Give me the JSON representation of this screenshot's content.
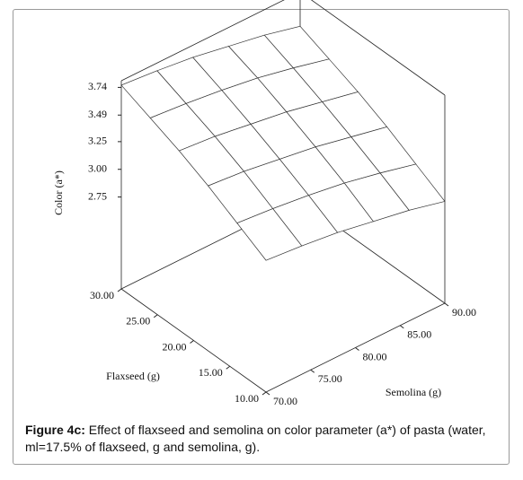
{
  "chart_data": {
    "type": "surface",
    "x_label": "Flaxseed (g)",
    "y_label": "Semolina (g)",
    "z_label": "Color (a*)",
    "x": [
      10,
      14,
      18,
      22,
      26,
      30
    ],
    "y": [
      70,
      74,
      78,
      82,
      86,
      90
    ],
    "z": [
      [
        3.11,
        3.08,
        3.04,
        2.98,
        2.92,
        2.84
      ],
      [
        3.26,
        3.23,
        3.19,
        3.14,
        3.07,
        2.99
      ],
      [
        3.41,
        3.38,
        3.33,
        3.28,
        3.21,
        3.14
      ],
      [
        3.54,
        3.51,
        3.46,
        3.41,
        3.34,
        3.27
      ],
      [
        3.65,
        3.62,
        3.58,
        3.53,
        3.46,
        3.38
      ],
      [
        3.76,
        3.73,
        3.69,
        3.63,
        3.57,
        3.49
      ]
    ],
    "xlim": [
      10,
      30
    ],
    "xticks": [
      {
        "value": 10,
        "label": "10.00"
      },
      {
        "value": 15,
        "label": "15.00"
      },
      {
        "value": 20,
        "label": "20.00"
      },
      {
        "value": 25,
        "label": "25.00"
      },
      {
        "value": 30,
        "label": "30.00"
      }
    ],
    "ylim": [
      70,
      90
    ],
    "yticks": [
      {
        "value": 70,
        "label": "70.00"
      },
      {
        "value": 75,
        "label": "75.00"
      },
      {
        "value": 80,
        "label": "80.00"
      },
      {
        "value": 85,
        "label": "85.00"
      },
      {
        "value": 90,
        "label": "90.00"
      }
    ],
    "zlim": [
      1.92,
      3.8
    ],
    "zticks": [
      2.75,
      {
        "value": 3,
        "label": "3.00"
      },
      3.25,
      3.49,
      3.74
    ],
    "color": "#ffffff"
  },
  "caption": {
    "label": "Figure 4c:",
    "text": "Effect of flaxseed and semolina on color parameter (a*) of pasta (water, ml=17.5% of flaxseed, g and semolina, g)."
  }
}
